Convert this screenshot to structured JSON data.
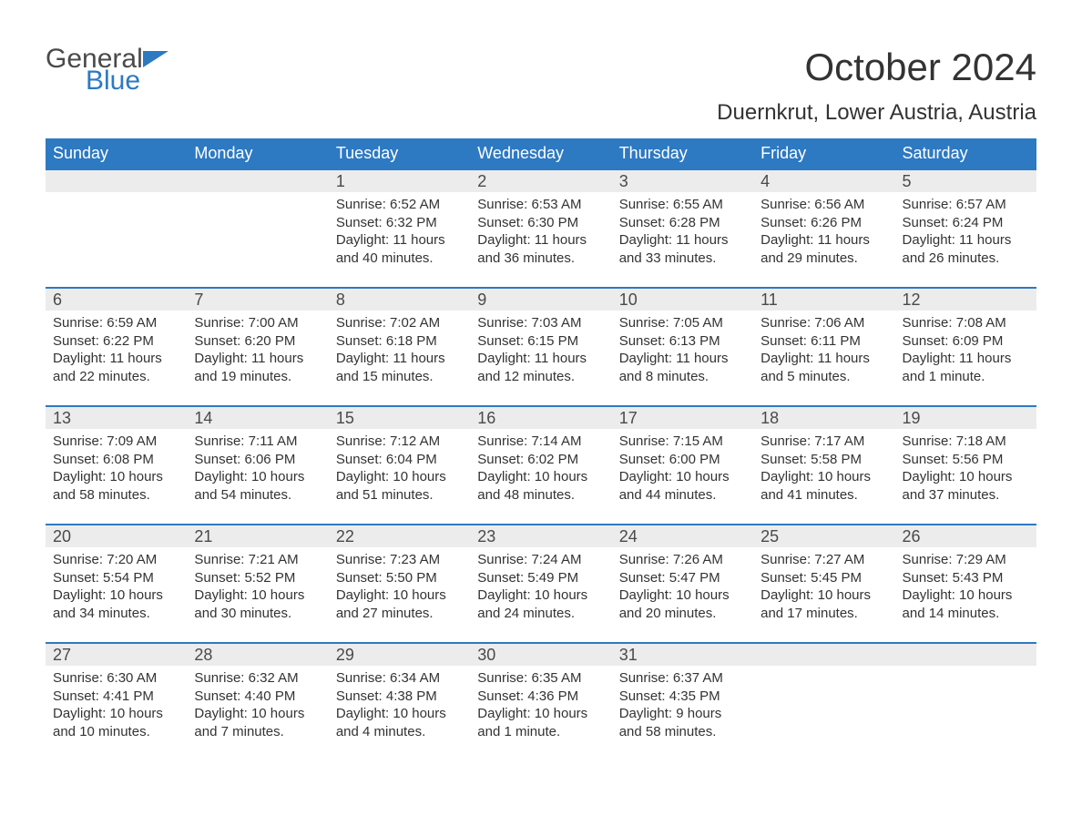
{
  "brand": {
    "word1": "General",
    "word2": "Blue",
    "accent_color": "#2d79c2"
  },
  "title": "October 2024",
  "subtitle": "Duernkrut, Lower Austria, Austria",
  "colors": {
    "header_bg": "#2d79c2",
    "header_text": "#ffffff",
    "daybar_bg": "#ececec",
    "daybar_border": "#2d79c2",
    "body_text": "#333333",
    "page_bg": "#ffffff"
  },
  "day_headers": [
    "Sunday",
    "Monday",
    "Tuesday",
    "Wednesday",
    "Thursday",
    "Friday",
    "Saturday"
  ],
  "weeks": [
    [
      null,
      null,
      {
        "n": "1",
        "sr": "Sunrise: 6:52 AM",
        "ss": "Sunset: 6:32 PM",
        "dl1": "Daylight: 11 hours",
        "dl2": "and 40 minutes."
      },
      {
        "n": "2",
        "sr": "Sunrise: 6:53 AM",
        "ss": "Sunset: 6:30 PM",
        "dl1": "Daylight: 11 hours",
        "dl2": "and 36 minutes."
      },
      {
        "n": "3",
        "sr": "Sunrise: 6:55 AM",
        "ss": "Sunset: 6:28 PM",
        "dl1": "Daylight: 11 hours",
        "dl2": "and 33 minutes."
      },
      {
        "n": "4",
        "sr": "Sunrise: 6:56 AM",
        "ss": "Sunset: 6:26 PM",
        "dl1": "Daylight: 11 hours",
        "dl2": "and 29 minutes."
      },
      {
        "n": "5",
        "sr": "Sunrise: 6:57 AM",
        "ss": "Sunset: 6:24 PM",
        "dl1": "Daylight: 11 hours",
        "dl2": "and 26 minutes."
      }
    ],
    [
      {
        "n": "6",
        "sr": "Sunrise: 6:59 AM",
        "ss": "Sunset: 6:22 PM",
        "dl1": "Daylight: 11 hours",
        "dl2": "and 22 minutes."
      },
      {
        "n": "7",
        "sr": "Sunrise: 7:00 AM",
        "ss": "Sunset: 6:20 PM",
        "dl1": "Daylight: 11 hours",
        "dl2": "and 19 minutes."
      },
      {
        "n": "8",
        "sr": "Sunrise: 7:02 AM",
        "ss": "Sunset: 6:18 PM",
        "dl1": "Daylight: 11 hours",
        "dl2": "and 15 minutes."
      },
      {
        "n": "9",
        "sr": "Sunrise: 7:03 AM",
        "ss": "Sunset: 6:15 PM",
        "dl1": "Daylight: 11 hours",
        "dl2": "and 12 minutes."
      },
      {
        "n": "10",
        "sr": "Sunrise: 7:05 AM",
        "ss": "Sunset: 6:13 PM",
        "dl1": "Daylight: 11 hours",
        "dl2": "and 8 minutes."
      },
      {
        "n": "11",
        "sr": "Sunrise: 7:06 AM",
        "ss": "Sunset: 6:11 PM",
        "dl1": "Daylight: 11 hours",
        "dl2": "and 5 minutes."
      },
      {
        "n": "12",
        "sr": "Sunrise: 7:08 AM",
        "ss": "Sunset: 6:09 PM",
        "dl1": "Daylight: 11 hours",
        "dl2": "and 1 minute."
      }
    ],
    [
      {
        "n": "13",
        "sr": "Sunrise: 7:09 AM",
        "ss": "Sunset: 6:08 PM",
        "dl1": "Daylight: 10 hours",
        "dl2": "and 58 minutes."
      },
      {
        "n": "14",
        "sr": "Sunrise: 7:11 AM",
        "ss": "Sunset: 6:06 PM",
        "dl1": "Daylight: 10 hours",
        "dl2": "and 54 minutes."
      },
      {
        "n": "15",
        "sr": "Sunrise: 7:12 AM",
        "ss": "Sunset: 6:04 PM",
        "dl1": "Daylight: 10 hours",
        "dl2": "and 51 minutes."
      },
      {
        "n": "16",
        "sr": "Sunrise: 7:14 AM",
        "ss": "Sunset: 6:02 PM",
        "dl1": "Daylight: 10 hours",
        "dl2": "and 48 minutes."
      },
      {
        "n": "17",
        "sr": "Sunrise: 7:15 AM",
        "ss": "Sunset: 6:00 PM",
        "dl1": "Daylight: 10 hours",
        "dl2": "and 44 minutes."
      },
      {
        "n": "18",
        "sr": "Sunrise: 7:17 AM",
        "ss": "Sunset: 5:58 PM",
        "dl1": "Daylight: 10 hours",
        "dl2": "and 41 minutes."
      },
      {
        "n": "19",
        "sr": "Sunrise: 7:18 AM",
        "ss": "Sunset: 5:56 PM",
        "dl1": "Daylight: 10 hours",
        "dl2": "and 37 minutes."
      }
    ],
    [
      {
        "n": "20",
        "sr": "Sunrise: 7:20 AM",
        "ss": "Sunset: 5:54 PM",
        "dl1": "Daylight: 10 hours",
        "dl2": "and 34 minutes."
      },
      {
        "n": "21",
        "sr": "Sunrise: 7:21 AM",
        "ss": "Sunset: 5:52 PM",
        "dl1": "Daylight: 10 hours",
        "dl2": "and 30 minutes."
      },
      {
        "n": "22",
        "sr": "Sunrise: 7:23 AM",
        "ss": "Sunset: 5:50 PM",
        "dl1": "Daylight: 10 hours",
        "dl2": "and 27 minutes."
      },
      {
        "n": "23",
        "sr": "Sunrise: 7:24 AM",
        "ss": "Sunset: 5:49 PM",
        "dl1": "Daylight: 10 hours",
        "dl2": "and 24 minutes."
      },
      {
        "n": "24",
        "sr": "Sunrise: 7:26 AM",
        "ss": "Sunset: 5:47 PM",
        "dl1": "Daylight: 10 hours",
        "dl2": "and 20 minutes."
      },
      {
        "n": "25",
        "sr": "Sunrise: 7:27 AM",
        "ss": "Sunset: 5:45 PM",
        "dl1": "Daylight: 10 hours",
        "dl2": "and 17 minutes."
      },
      {
        "n": "26",
        "sr": "Sunrise: 7:29 AM",
        "ss": "Sunset: 5:43 PM",
        "dl1": "Daylight: 10 hours",
        "dl2": "and 14 minutes."
      }
    ],
    [
      {
        "n": "27",
        "sr": "Sunrise: 6:30 AM",
        "ss": "Sunset: 4:41 PM",
        "dl1": "Daylight: 10 hours",
        "dl2": "and 10 minutes."
      },
      {
        "n": "28",
        "sr": "Sunrise: 6:32 AM",
        "ss": "Sunset: 4:40 PM",
        "dl1": "Daylight: 10 hours",
        "dl2": "and 7 minutes."
      },
      {
        "n": "29",
        "sr": "Sunrise: 6:34 AM",
        "ss": "Sunset: 4:38 PM",
        "dl1": "Daylight: 10 hours",
        "dl2": "and 4 minutes."
      },
      {
        "n": "30",
        "sr": "Sunrise: 6:35 AM",
        "ss": "Sunset: 4:36 PM",
        "dl1": "Daylight: 10 hours",
        "dl2": "and 1 minute."
      },
      {
        "n": "31",
        "sr": "Sunrise: 6:37 AM",
        "ss": "Sunset: 4:35 PM",
        "dl1": "Daylight: 9 hours",
        "dl2": "and 58 minutes."
      },
      null,
      null
    ]
  ]
}
